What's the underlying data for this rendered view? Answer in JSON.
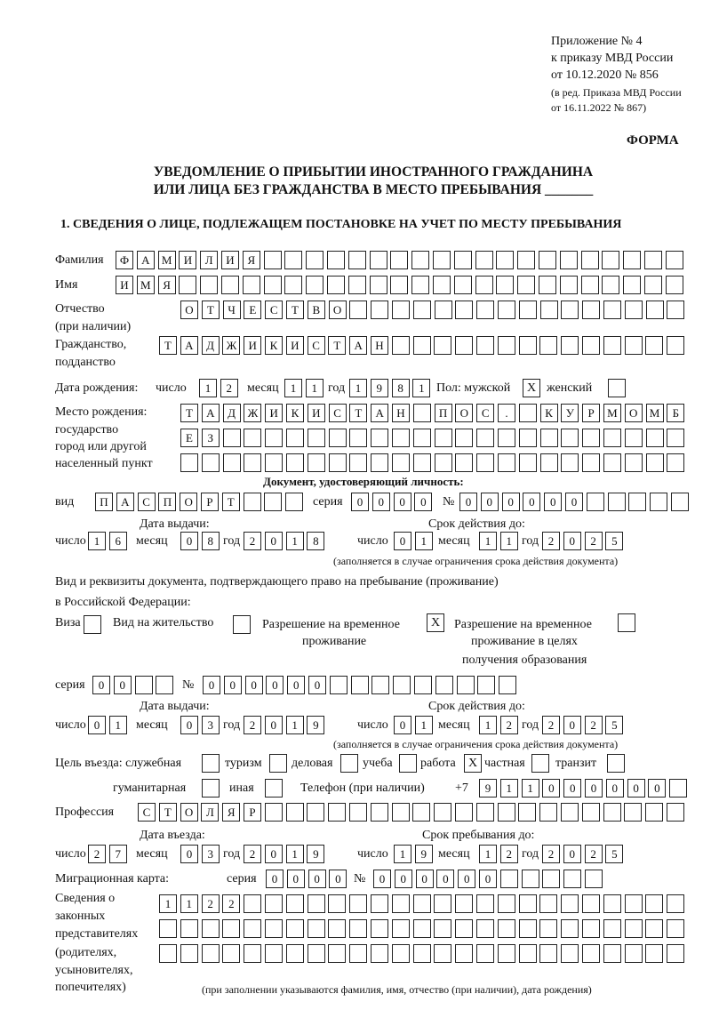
{
  "header": {
    "line1": "Приложение № 4",
    "line2": "к приказу МВД России",
    "line3": "от 10.12.2020 № 856",
    "line4": "(в ред. Приказа МВД России",
    "line5": "от 16.11.2022 № 867)",
    "forma": "ФОРМА",
    "title1": "УВЕДОМЛЕНИЕ О ПРИБЫТИИ ИНОСТРАННОГО ГРАЖДАНИНА",
    "title2": "ИЛИ ЛИЦА БЕЗ ГРАЖДАНСТВА В МЕСТО ПРЕБЫВАНИЯ _______",
    "section1": "1. СВЕДЕНИЯ О ЛИЦЕ, ПОДЛЕЖАЩЕМ ПОСТАНОВКЕ НА УЧЕТ ПО МЕСТУ ПРЕБЫВАНИЯ"
  },
  "labels": {
    "surname": "Фамилия",
    "name": "Имя",
    "patronymic": "Отчество",
    "patronymic2": "(при наличии)",
    "citizenship": "Гражданство,",
    "citizenship2": "подданство",
    "birth_date": "Дата рождения:",
    "day": "число",
    "month": "месяц",
    "year": "год",
    "sex": "Пол: мужской",
    "female": "женский",
    "birth_place": "Место рождения:",
    "birth_place2": "государство",
    "birth_place3": "город или другой",
    "birth_place4": "населенный пункт",
    "id_doc": "Документ, удостоверяющий личность:",
    "kind": "вид",
    "series": "серия",
    "number": "№",
    "issue_date": "Дата выдачи:",
    "valid_until": "Срок действия до:",
    "validity_note": "(заполняется в случае ограничения срока действия документа)",
    "residence_doc": "Вид и реквизиты документа, подтверждающего право на пребывание (проживание)",
    "residence_doc2": "в Российской Федерации:",
    "visa": "Виза",
    "residence_permit": "Вид на жительство",
    "temp_permit": "Разрешение на временное",
    "temp_permit2": "проживание",
    "edu_permit": "Разрешение на временное",
    "edu_permit2": "проживание в целях",
    "edu_permit3": "получения образования",
    "purpose": "Цель въезда: служебная",
    "tourism": "туризм",
    "business": "деловая",
    "study": "учеба",
    "work": "работа",
    "private": "частная",
    "transit": "транзит",
    "humanitarian": "гуманитарная",
    "other": "иная",
    "phone": "Телефон (при наличии)",
    "phone_prefix": "+7",
    "profession": "Профессия",
    "entry_date": "Дата въезда:",
    "stay_until": "Срок пребывания до:",
    "migration_card": "Миграционная карта:",
    "reps1": "Сведения о",
    "reps2": "законных",
    "reps3": "представителях",
    "reps4": "(родителях,",
    "reps5": "усыновителях,",
    "reps6": "попечителях)",
    "reps_note": "(при заполнении указываются фамилия, имя, отчество (при наличии), дата рождения)"
  },
  "values": {
    "surname": "ФАМИЛИЯ",
    "name": "ИМЯ",
    "patronymic": "ОТЧЕСТВО",
    "citizenship": "ТАДЖИКИСТАН",
    "birth_day": "12",
    "birth_month": "11",
    "birth_year": "1981",
    "sex_male": "X",
    "sex_female": "",
    "birth_place_1": "ТАДЖИКИСТАН ПОС. КУРМОМБ",
    "birth_place_2": "ЕЗ",
    "birth_place_3": "",
    "id_kind": "ПАСПОРТ",
    "id_series": "0000",
    "id_number": "000000",
    "id_issue_day": "16",
    "id_issue_month": "08",
    "id_issue_year": "2018",
    "id_valid_day": "01",
    "id_valid_month": "11",
    "id_valid_year": "2025",
    "visa": "",
    "residence_permit": "",
    "temp_permit": "X",
    "edu_permit": "",
    "rp_series": "00",
    "rp_number": "000000",
    "rp_issue_day": "01",
    "rp_issue_month": "03",
    "rp_issue_year": "2019",
    "rp_valid_day": "01",
    "rp_valid_month": "12",
    "rp_valid_year": "2025",
    "purpose_official": "",
    "purpose_tourism": "",
    "purpose_business": "",
    "purpose_study": "",
    "purpose_work": "X",
    "purpose_private": "",
    "purpose_transit": "",
    "purpose_humanitarian": "",
    "purpose_other": "",
    "phone": "911000000",
    "profession": "СТОЛЯР",
    "entry_day": "27",
    "entry_month": "03",
    "entry_year": "2019",
    "stay_day": "19",
    "stay_month": "12",
    "stay_year": "2025",
    "mc_series": "0000",
    "mc_number": "000000",
    "reps_1": "1122",
    "reps_2": "",
    "reps_3": ""
  }
}
